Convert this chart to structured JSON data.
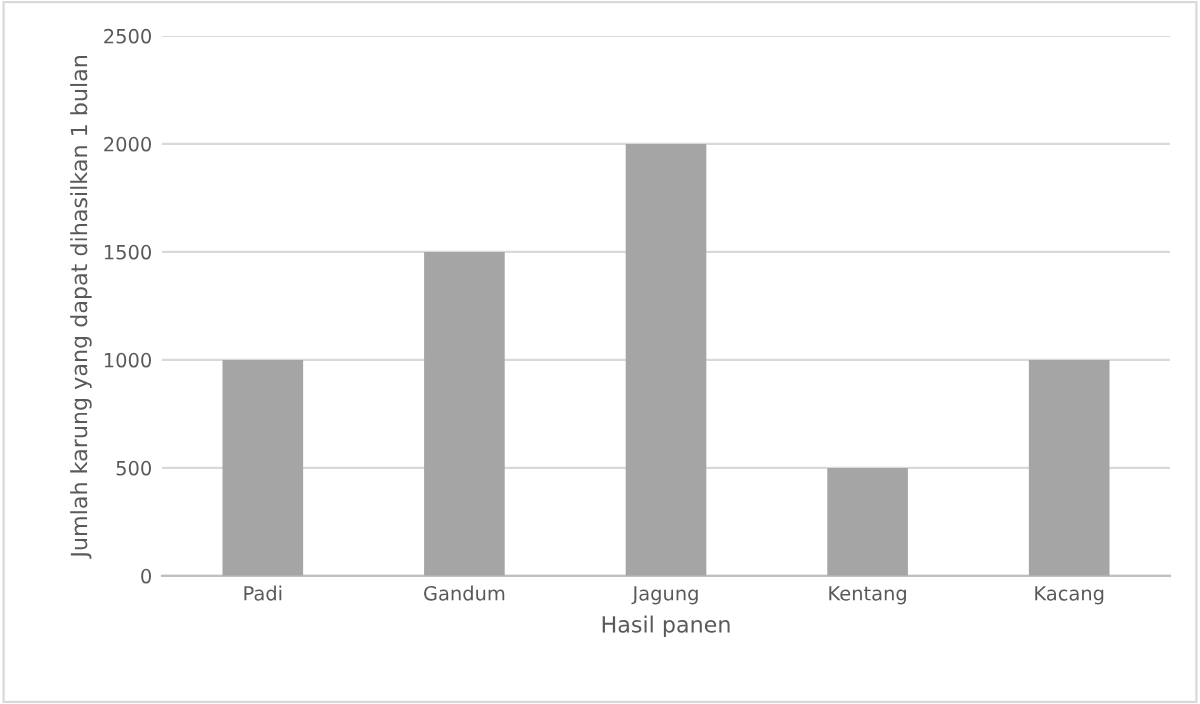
{
  "chart_data": {
    "type": "bar",
    "xlabel": "Hasil panen",
    "ylabel": "Jumlah karung yang dapat dihasilkan 1 bulan",
    "categories": [
      "Padi",
      "Gandum",
      "Jagung",
      "Kentang",
      "Kacang"
    ],
    "values": [
      1000,
      1500,
      2000,
      500,
      1000
    ],
    "color": "#a5a5a5",
    "ylim": [
      0,
      2500
    ],
    "yticks": [
      0,
      500,
      1000,
      1500,
      2000,
      2500
    ],
    "grid": "y",
    "legend": false
  }
}
